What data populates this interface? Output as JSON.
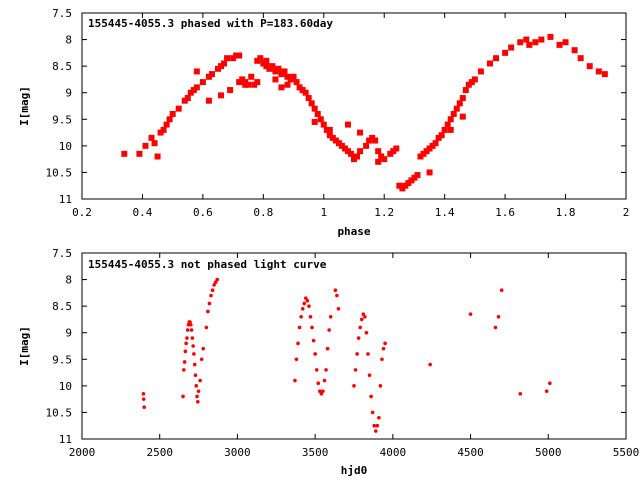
{
  "chart_data": [
    {
      "type": "scatter",
      "title": "155445-4055.3 phased with P=183.60day",
      "xlabel": "phase",
      "ylabel": "I[mag]",
      "xlim": [
        0.2,
        2.0
      ],
      "ylim": [
        7.5,
        11.0
      ],
      "y_inverted": true,
      "grid": false,
      "legend": "none",
      "marker": "filled-square",
      "color": "#ff0000",
      "x_ticks": [
        "0.2",
        "0.4",
        "0.6",
        "0.8",
        "1",
        "1.2",
        "1.4",
        "1.6",
        "1.8",
        "2"
      ],
      "y_ticks": [
        "7.5",
        "8",
        "8.5",
        "9",
        "9.5",
        "10",
        "10.5",
        "11"
      ],
      "series": [
        {
          "x": [
            0.34,
            0.39,
            0.41,
            0.43,
            0.44,
            0.45,
            0.46,
            0.47,
            0.48,
            0.49,
            0.5,
            0.52,
            0.54,
            0.55,
            0.56,
            0.57,
            0.58,
            0.58,
            0.6,
            0.62,
            0.63,
            0.65,
            0.66,
            0.67,
            0.68,
            0.7,
            0.71,
            0.72,
            0.72,
            0.73,
            0.74,
            0.75,
            0.76,
            0.77,
            0.78,
            0.78,
            0.79,
            0.8,
            0.81,
            0.81,
            0.82,
            0.83,
            0.84,
            0.85,
            0.86,
            0.86,
            0.87,
            0.88,
            0.89,
            0.9,
            0.91,
            0.92,
            0.93,
            0.94,
            0.95,
            0.96,
            0.97,
            0.98,
            0.99,
            1.0,
            1.01,
            1.02,
            1.03,
            1.04,
            1.05,
            1.06,
            1.07,
            1.08,
            1.09,
            1.1,
            1.11,
            1.12,
            1.14,
            1.15,
            1.16,
            1.17,
            1.18,
            1.19,
            1.2,
            1.22,
            1.23,
            1.24,
            1.25,
            1.26,
            1.27,
            1.28,
            1.29,
            1.3,
            1.31,
            1.32,
            1.33,
            1.34,
            1.35,
            1.36,
            1.37,
            1.38,
            1.39,
            1.4,
            1.41,
            1.42,
            1.43,
            1.44,
            1.45,
            1.46,
            1.47,
            1.48,
            1.49,
            1.5,
            1.52,
            1.55,
            1.57,
            1.6,
            1.62,
            1.65,
            1.67,
            1.68,
            1.7,
            1.72,
            1.75,
            1.78,
            1.8,
            1.83,
            1.85,
            1.88,
            1.91,
            1.93,
            1.35,
            1.42,
            1.46,
            0.62,
            0.66,
            0.69,
            0.74,
            0.84,
            0.88,
            0.97,
            1.02,
            1.08,
            1.12,
            1.18
          ],
          "y": [
            10.15,
            10.15,
            10.0,
            9.85,
            9.95,
            10.2,
            9.75,
            9.7,
            9.6,
            9.5,
            9.4,
            9.3,
            9.15,
            9.1,
            9.0,
            8.95,
            8.9,
            8.6,
            8.8,
            8.7,
            8.65,
            8.55,
            8.5,
            8.45,
            8.35,
            8.35,
            8.3,
            8.3,
            8.8,
            8.75,
            8.8,
            8.85,
            8.7,
            8.85,
            8.8,
            8.4,
            8.35,
            8.45,
            8.5,
            8.4,
            8.55,
            8.5,
            8.6,
            8.55,
            8.65,
            8.9,
            8.6,
            8.7,
            8.75,
            8.7,
            8.8,
            8.9,
            8.95,
            9.0,
            9.1,
            9.2,
            9.3,
            9.4,
            9.5,
            9.6,
            9.7,
            9.8,
            9.85,
            9.9,
            9.95,
            10.0,
            10.05,
            10.1,
            10.15,
            10.25,
            10.2,
            10.1,
            10.0,
            9.9,
            9.85,
            9.9,
            10.1,
            10.2,
            10.25,
            10.15,
            10.1,
            10.05,
            10.75,
            10.8,
            10.75,
            10.7,
            10.65,
            10.6,
            10.55,
            10.2,
            10.15,
            10.1,
            10.05,
            10.0,
            9.95,
            9.85,
            9.8,
            9.7,
            9.6,
            9.5,
            9.4,
            9.3,
            9.2,
            9.1,
            8.95,
            8.85,
            8.8,
            8.75,
            8.6,
            8.45,
            8.35,
            8.25,
            8.15,
            8.05,
            8.0,
            8.1,
            8.05,
            8.0,
            7.95,
            8.1,
            8.05,
            8.2,
            8.35,
            8.5,
            8.6,
            8.65,
            10.5,
            9.7,
            9.45,
            9.15,
            9.05,
            8.95,
            8.85,
            8.75,
            8.85,
            9.55,
            9.7,
            9.6,
            9.75,
            10.3
          ]
        }
      ]
    },
    {
      "type": "scatter",
      "title": "155445-4055.3 not phased light curve",
      "xlabel": "hjd0",
      "ylabel": "I[mag]",
      "xlim": [
        2000,
        5500
      ],
      "ylim": [
        7.5,
        11.0
      ],
      "y_inverted": true,
      "grid": false,
      "legend": "none",
      "marker": "filled-circle",
      "color": "#ff0000",
      "x_ticks": [
        "2000",
        "2500",
        "3000",
        "3500",
        "4000",
        "4500",
        "5000",
        "5500"
      ],
      "y_ticks": [
        "7.5",
        "8",
        "8.5",
        "9",
        "9.5",
        "10",
        "10.5",
        "11"
      ],
      "series": [
        {
          "x": [
            2395,
            2397,
            2400,
            2650,
            2655,
            2660,
            2665,
            2670,
            2675,
            2680,
            2685,
            2690,
            2695,
            2700,
            2705,
            2710,
            2715,
            2720,
            2725,
            2730,
            2735,
            2740,
            2745,
            2750,
            2760,
            2770,
            2780,
            2800,
            2810,
            2820,
            2830,
            2840,
            2850,
            2860,
            2870,
            3370,
            3380,
            3390,
            3400,
            3410,
            3420,
            3430,
            3440,
            3450,
            3460,
            3470,
            3480,
            3490,
            3500,
            3510,
            3520,
            3530,
            3540,
            3550,
            3560,
            3570,
            3580,
            3590,
            3600,
            3630,
            3640,
            3650,
            3750,
            3760,
            3770,
            3780,
            3790,
            3800,
            3810,
            3820,
            3830,
            3840,
            3850,
            3860,
            3870,
            3880,
            3890,
            3900,
            3910,
            3920,
            3930,
            3940,
            3950,
            4240,
            4500,
            4660,
            4680,
            4700,
            4820,
            4990,
            5010
          ],
          "y": [
            10.15,
            10.25,
            10.4,
            10.2,
            9.7,
            9.55,
            9.35,
            9.2,
            9.1,
            8.95,
            8.85,
            8.8,
            8.8,
            8.85,
            8.95,
            9.1,
            9.25,
            9.4,
            9.6,
            9.8,
            10.0,
            10.2,
            10.3,
            10.1,
            9.9,
            9.5,
            9.3,
            8.9,
            8.6,
            8.45,
            8.3,
            8.2,
            8.1,
            8.05,
            8.0,
            9.9,
            9.5,
            9.2,
            8.9,
            8.7,
            8.55,
            8.45,
            8.35,
            8.4,
            8.5,
            8.7,
            8.9,
            9.15,
            9.4,
            9.7,
            9.95,
            10.1,
            10.15,
            10.1,
            9.9,
            9.7,
            9.3,
            8.95,
            8.7,
            8.2,
            8.3,
            8.55,
            10.0,
            9.7,
            9.4,
            9.1,
            8.9,
            8.75,
            8.65,
            8.7,
            9.0,
            9.4,
            9.8,
            10.2,
            10.5,
            10.75,
            10.85,
            10.75,
            10.6,
            10.0,
            9.5,
            9.3,
            9.2,
            9.6,
            8.65,
            8.9,
            8.7,
            8.2,
            10.15,
            10.1,
            9.95
          ]
        }
      ]
    }
  ]
}
